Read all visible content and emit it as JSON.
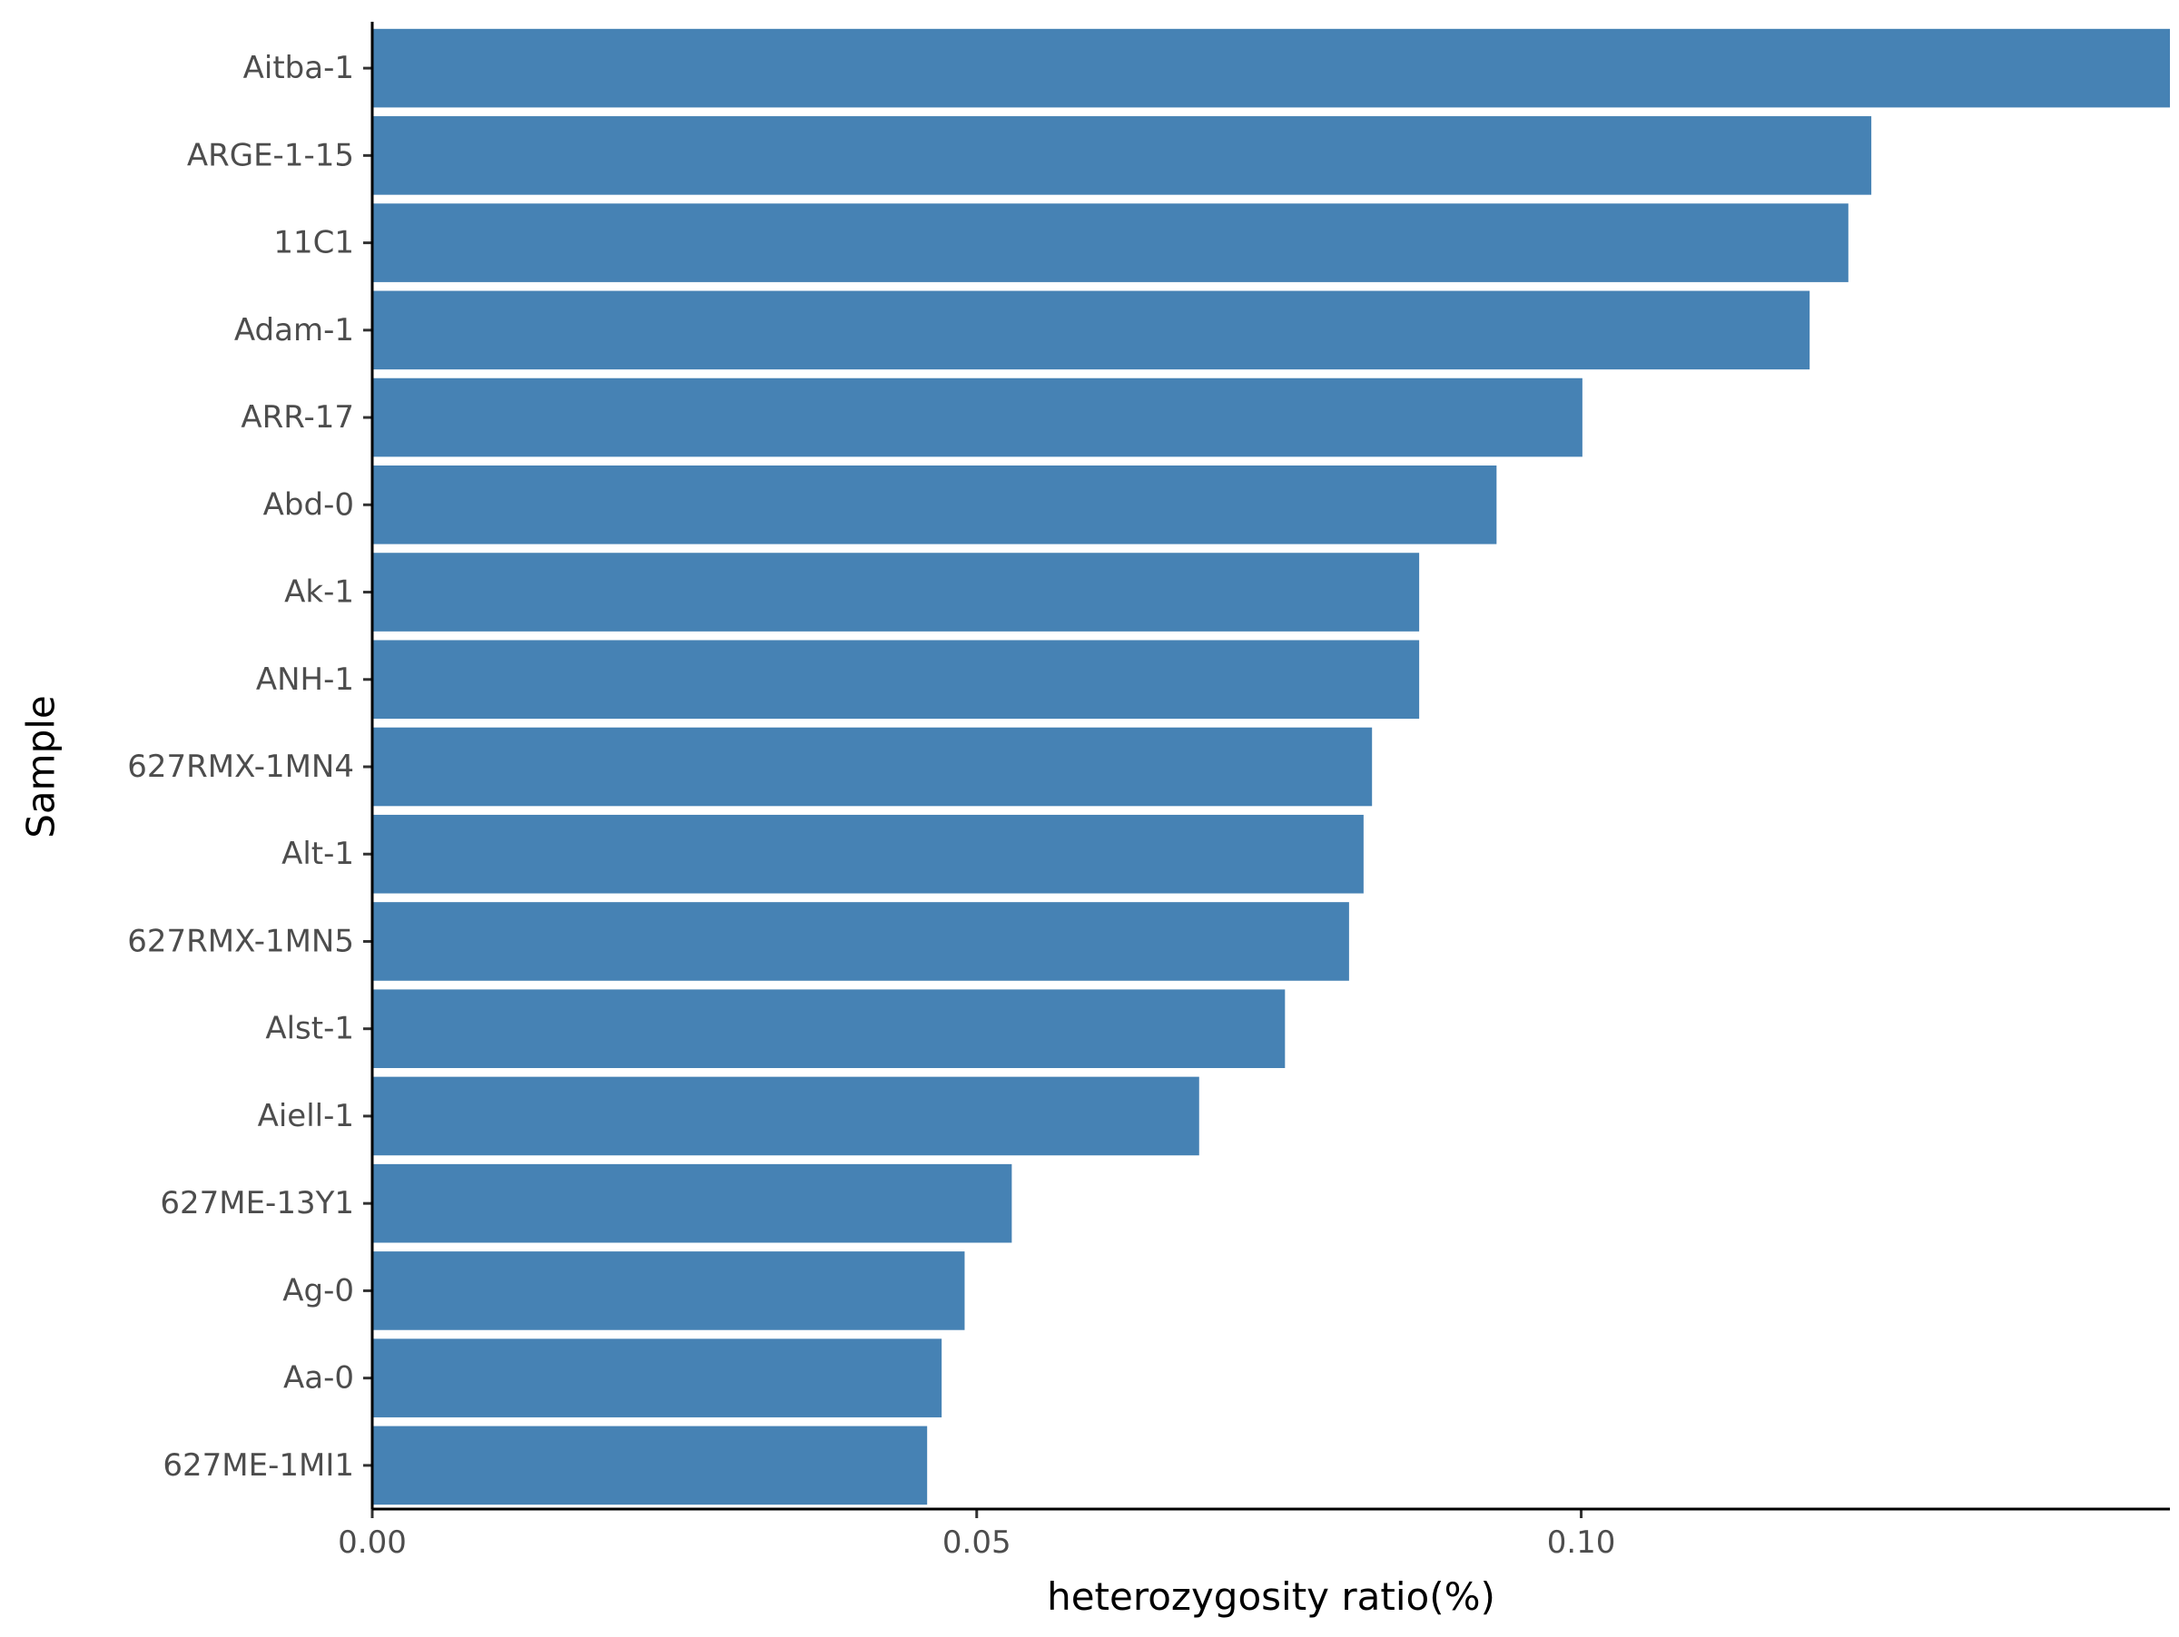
{
  "chart_data": {
    "type": "bar",
    "orientation": "horizontal",
    "title": "",
    "xlabel": "heterozygosity ratio(%)",
    "ylabel": "Sample",
    "categories": [
      "Aitba-1",
      "ARGE-1-15",
      "11C1",
      "Adam-1",
      "ARR-17",
      "Abd-0",
      "Ak-1",
      "ANH-1",
      "627RMX-1MN4",
      "Alt-1",
      "627RMX-1MN5",
      "Alst-1",
      "Aiell-1",
      "627ME-13Y1",
      "Ag-0",
      "Aa-0",
      "627ME-1MI1"
    ],
    "values": [
      0.1487,
      0.124,
      0.1221,
      0.1189,
      0.1001,
      0.093,
      0.0866,
      0.0866,
      0.0827,
      0.082,
      0.0808,
      0.0755,
      0.0684,
      0.0529,
      0.049,
      0.0471,
      0.0459
    ],
    "xlim": [
      0,
      0.1487
    ],
    "xticks": [
      0,
      0.05,
      0.1
    ],
    "xtick_labels": [
      "0.00",
      "0.05",
      "0.10"
    ],
    "bar_color": "#4682B4",
    "grid": false,
    "legend": "none"
  }
}
